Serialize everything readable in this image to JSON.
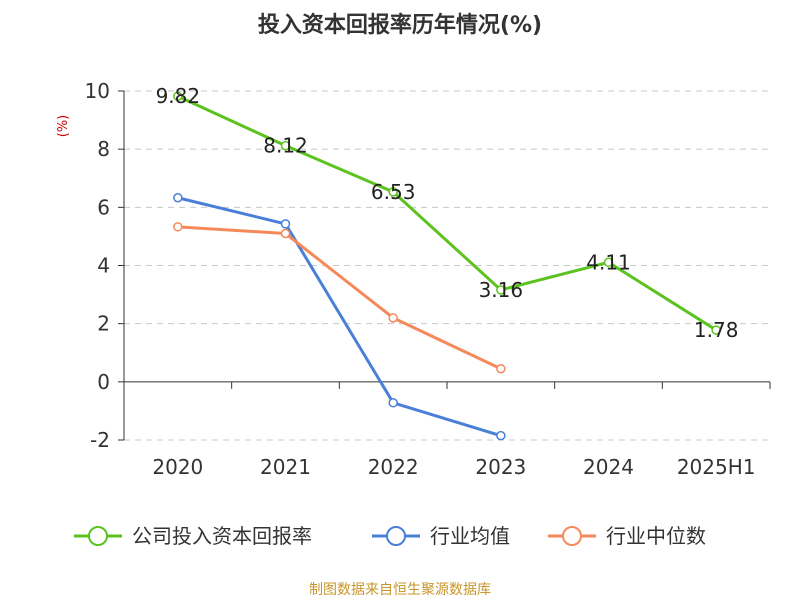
{
  "chart_data": {
    "type": "line",
    "title": "投入资本回报率历年情况(%)",
    "ylabel": "(%)",
    "categories": [
      "2020",
      "2021",
      "2022",
      "2023",
      "2024",
      "2025H1"
    ],
    "ylim": [
      -2,
      10
    ],
    "yticks": [
      -2,
      0,
      2,
      4,
      6,
      8,
      10
    ],
    "grid": true,
    "legend_position": "bottom",
    "series": [
      {
        "name": "公司投入资本回报率",
        "color": "#5cc21f",
        "values": [
          9.82,
          8.12,
          6.53,
          3.16,
          4.11,
          1.78
        ],
        "labels": [
          "9.82",
          "8.12",
          "6.53",
          "3.16",
          "4.11",
          "1.78"
        ]
      },
      {
        "name": "行业均值",
        "color": "#4a7fd8",
        "values": [
          6.33,
          5.43,
          -0.72,
          -1.85,
          null,
          null
        ]
      },
      {
        "name": "行业中位数",
        "color": "#f5895a",
        "values": [
          5.33,
          5.1,
          2.2,
          0.45,
          null,
          null
        ]
      }
    ]
  },
  "source_text": "制图数据来自恒生聚源数据库",
  "colors": {
    "ylabel": "#cc0000",
    "source": "#c8962a",
    "axis": "#333333",
    "grid": "#c8c8c8"
  }
}
